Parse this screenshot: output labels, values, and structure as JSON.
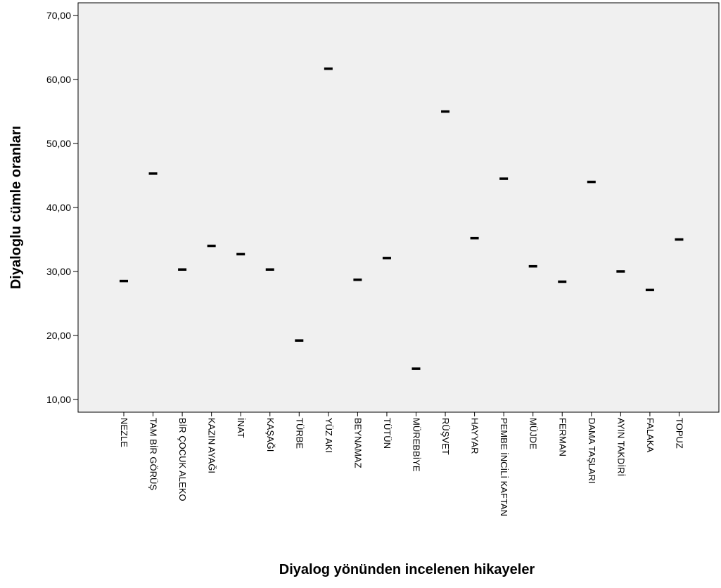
{
  "chart_data": {
    "type": "scatter",
    "title": "",
    "xlabel": "Diyalog yönünden incelenen hikayeler",
    "ylabel": "Diyaloglu cümle oranları",
    "ylim": [
      8,
      72
    ],
    "yticks": [
      10,
      20,
      30,
      40,
      50,
      60,
      70
    ],
    "ytick_labels": [
      "10,00",
      "20,00",
      "30,00",
      "40,00",
      "50,00",
      "60,00",
      "70,00"
    ],
    "grid": false,
    "legend": "none",
    "colors": {
      "plot_background": "#f0f0f0",
      "marker": "#000000",
      "axis": "#000000"
    },
    "categories": [
      "NEZLE",
      "TAM BİR GÖRÜŞ",
      "BİR ÇOCUK ALEKO",
      "KAZIN AYAĞI",
      "İNAT",
      "KAŞAĞI",
      "TÜRBE",
      "YÜZ AKI",
      "BEYNAMAZ",
      "TÜTÜN",
      "MÜREBBİYE",
      "RÜŞVET",
      "HAYYAR",
      "PEMBE İNCİLİ KAFTAN",
      "MÜJDE",
      "FERMAN",
      "DAMA TAŞLARI",
      "AYIN TAKDİRİ",
      "FALAKA",
      "TOPUZ"
    ],
    "values": [
      28.5,
      45.3,
      30.3,
      34.0,
      32.7,
      30.3,
      19.2,
      61.7,
      28.7,
      32.1,
      14.8,
      55.0,
      35.2,
      44.5,
      30.8,
      28.4,
      44.0,
      30.0,
      27.1,
      35.0
    ]
  }
}
